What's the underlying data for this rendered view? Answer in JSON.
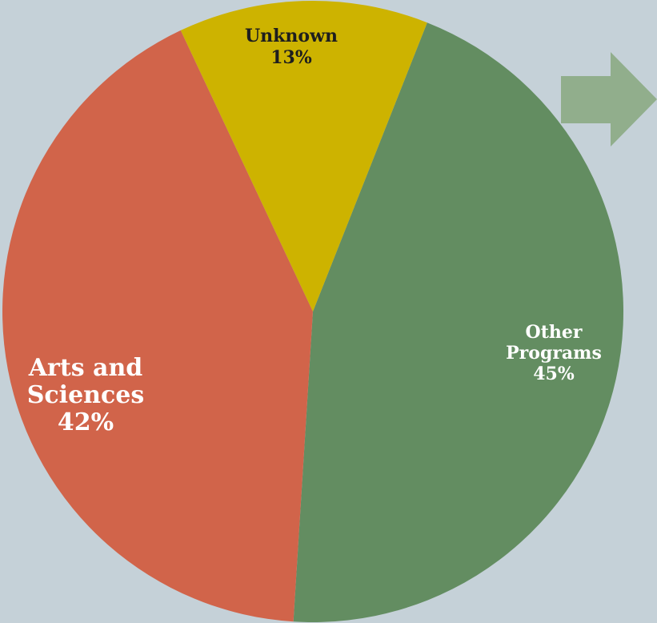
{
  "chart_data": {
    "type": "pie",
    "slices": [
      {
        "label_lines": [
          "Other",
          "Programs"
        ],
        "percent_label": "45%",
        "value": 45,
        "color": "#638d61"
      },
      {
        "label_lines": [
          "Arts and",
          "Sciences"
        ],
        "percent_label": "42%",
        "value": 42,
        "color": "#d1644a"
      },
      {
        "label_lines": [
          "Unknown"
        ],
        "percent_label": "13%",
        "value": 13,
        "color": "#cdb300"
      }
    ],
    "title": "",
    "legend": "none"
  },
  "decor": {
    "background_color": "#c5d1d8",
    "arrow_color": "#91ae8c",
    "label_colors": [
      "#ffffff",
      "#ffffff",
      "#1e1e1e"
    ],
    "arrow_icon": "right-arrow-icon"
  }
}
